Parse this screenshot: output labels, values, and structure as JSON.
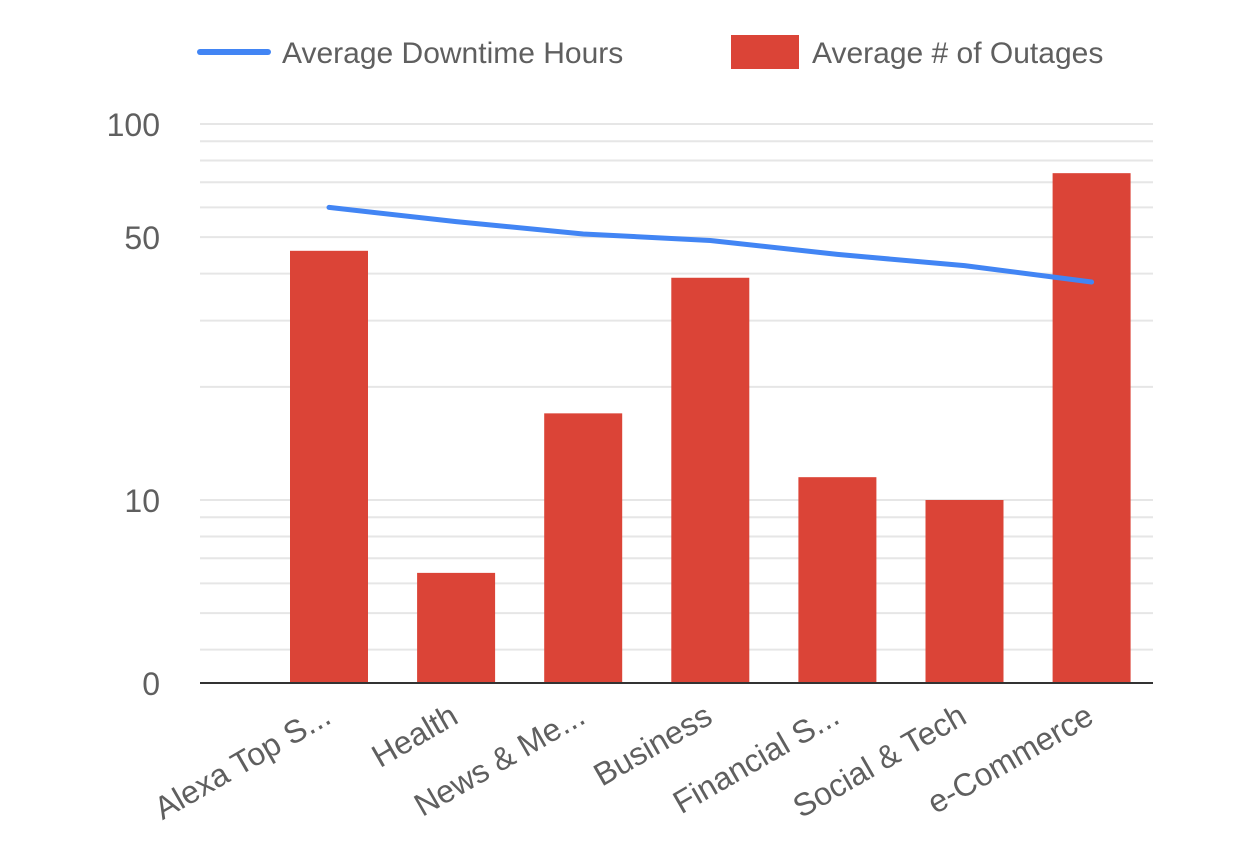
{
  "chart_data": {
    "type": "bar",
    "title": "",
    "xlabel": "",
    "ylabel": "",
    "y_scale": "log",
    "ylim": [
      0,
      100
    ],
    "y_ticks": [
      0,
      10,
      50,
      100
    ],
    "grid": true,
    "legend_position": "top",
    "categories": [
      "Alexa Top S...",
      "Health",
      "News & Me...",
      "Business",
      "Financial S...",
      "Social & Tech",
      "e-Commerce"
    ],
    "series": [
      {
        "name": "Average Downtime Hours",
        "kind": "line",
        "color": "#4285f4",
        "values": [
          60,
          55,
          51,
          49,
          45,
          42,
          38
        ]
      },
      {
        "name": "Average # of Outages",
        "kind": "bar",
        "color": "#db4437",
        "values": [
          46,
          6.4,
          17,
          39,
          11.5,
          10,
          74
        ]
      }
    ]
  }
}
